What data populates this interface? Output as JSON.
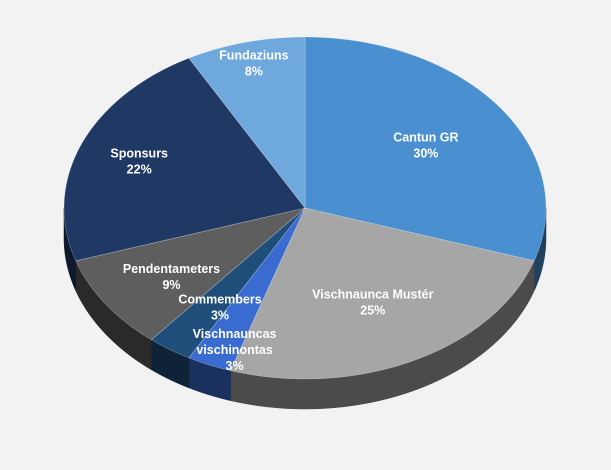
{
  "chart_data": {
    "type": "pie",
    "style": "3d",
    "title": "",
    "slices": [
      {
        "label": "Cantun GR",
        "value": 30,
        "value_label": "30%",
        "color": "#4a90d0"
      },
      {
        "label": "Vischnaunca Mustér",
        "value": 25,
        "value_label": "25%",
        "color": "#a6a6a6"
      },
      {
        "label": "Vischnauncas vischinontas",
        "value": 3,
        "value_label": "3%",
        "color": "#3a6bd0"
      },
      {
        "label": "Commembers",
        "value": 3,
        "value_label": "3%",
        "color": "#1f4e7a"
      },
      {
        "label": "Pendentameters",
        "value": 9,
        "value_label": "9%",
        "color": "#5e5e5e"
      },
      {
        "label": "Sponsurs",
        "value": 22,
        "value_label": "22%",
        "color": "#1f3864"
      },
      {
        "label": "Fundaziuns",
        "value": 8,
        "value_label": "8%",
        "color": "#6fa8dc"
      }
    ]
  }
}
